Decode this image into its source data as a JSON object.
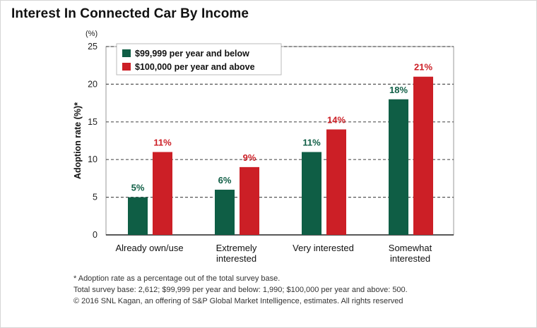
{
  "title": "Interest In Connected Car By Income",
  "chart_data": {
    "type": "bar",
    "unit_label": "(%)",
    "ylabel": "Adoption rate (%)*",
    "ylim": [
      0,
      25
    ],
    "yticks": [
      0,
      5,
      10,
      15,
      20,
      25
    ],
    "grid": true,
    "legend_position": "top-left",
    "categories": [
      "Already own/use",
      "Extremely interested",
      "Very interested",
      "Somewhat interested"
    ],
    "category_lines": [
      [
        "Already own/use"
      ],
      [
        "Extremely",
        "interested"
      ],
      [
        "Very interested"
      ],
      [
        "Somewhat",
        "interested"
      ]
    ],
    "series": [
      {
        "name": "$99,999 per year and below",
        "color": "#0f5e45",
        "values": [
          5,
          6,
          11,
          18
        ],
        "labels": [
          "5%",
          "6%",
          "11%",
          "18%"
        ]
      },
      {
        "name": "$100,000 per year and above",
        "color": "#cc1f26",
        "values": [
          11,
          9,
          14,
          21
        ],
        "labels": [
          "11%",
          "9%",
          "14%",
          "21%"
        ]
      }
    ]
  },
  "footnotes": [
    "* Adoption rate as a percentage out of the total survey base.",
    "Total survey base: 2,612; $99,999 per year and below: 1,990; $100,000 per year and above: 500.",
    "© 2016 SNL Kagan, an offering of S&P Global Market Intelligence, estimates. All rights reserved"
  ]
}
